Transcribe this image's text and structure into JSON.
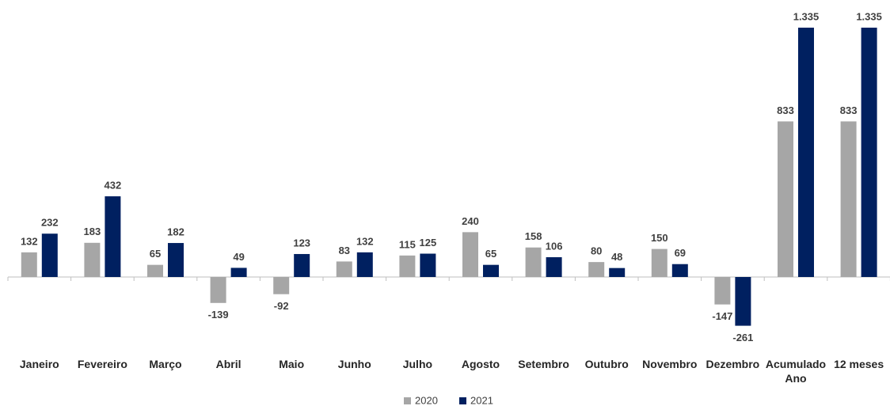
{
  "chart_data": {
    "type": "bar",
    "categories": [
      "Janeiro",
      "Fevereiro",
      "Março",
      "Abril",
      "Maio",
      "Junho",
      "Julho",
      "Agosto",
      "Setembro",
      "Outubro",
      "Novembro",
      "Dezembro",
      "Acumulado Ano",
      "12 meses"
    ],
    "series": [
      {
        "name": "2020",
        "color": "#a6a6a6",
        "values": [
          132,
          183,
          65,
          -139,
          -92,
          83,
          115,
          240,
          158,
          80,
          150,
          -147,
          833,
          833
        ]
      },
      {
        "name": "2021",
        "color": "#002060",
        "values": [
          232,
          432,
          182,
          49,
          123,
          132,
          125,
          65,
          106,
          48,
          69,
          -261,
          1335,
          1335
        ],
        "value_labels": [
          "232",
          "432",
          "182",
          "49",
          "123",
          "132",
          "125",
          "65",
          "106",
          "48",
          "69",
          "-261",
          "1.335",
          "1.335"
        ]
      }
    ],
    "ylim": [
      -400,
      1400
    ],
    "legend": "bottom"
  }
}
